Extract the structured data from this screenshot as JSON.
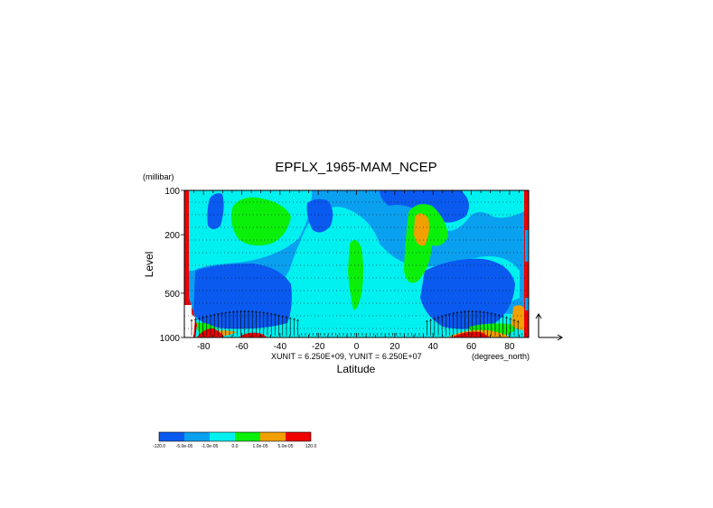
{
  "colors": {
    "c1": "#0a5af0",
    "c2": "#0aa0f0",
    "c3": "#00f0f0",
    "c4": "#0af00a",
    "c5": "#f0a000",
    "c6": "#f00000",
    "lines": "#000000"
  },
  "chart_data": {
    "type": "heatmap",
    "title": "EPFLX_1965-MAM_NCEP",
    "xlabel": "Latitude",
    "ylabel": "Level",
    "x_units": "(degrees_north)",
    "y_units": "(millibar)",
    "scale_note": "XUNIT = 6.250E+09, YUNIT = 6.250E+07",
    "x_ticks": [
      "-80",
      "-60",
      "-40",
      "-20",
      "0",
      "20",
      "40",
      "60",
      "80"
    ],
    "x_tick_values": [
      -80,
      -60,
      -40,
      -20,
      0,
      20,
      40,
      60,
      80
    ],
    "y_ticks": [
      "100",
      "200",
      "500",
      "1000"
    ],
    "y_tick_values": [
      100,
      200,
      500,
      1000
    ],
    "xlim": [
      -90,
      90
    ],
    "ylim": [
      1000,
      100
    ],
    "y_scale": "log",
    "grid": "dotted horizontal lines",
    "legend_position": "bottom-left colorbar",
    "colorbar_labels": [
      "-120.0",
      "-5.0e-05",
      "-1.0e-05",
      "0.0",
      "1.0e-05",
      "5.0e-05",
      "120.0"
    ],
    "colorbar_colors": [
      "c1",
      "c2",
      "c3",
      "c4",
      "c5",
      "c6"
    ]
  }
}
